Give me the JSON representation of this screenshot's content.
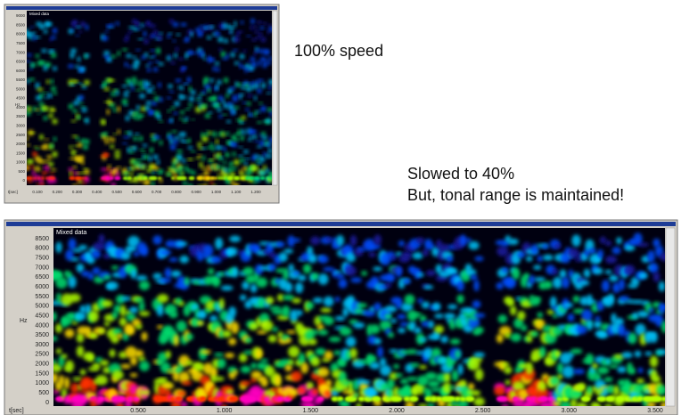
{
  "caption_top": "100% speed",
  "caption_bottom": [
    "Slowed to 40%",
    "But, tonal range is maintained!"
  ],
  "top_window": {
    "legend": "Mixed data",
    "unit": "Hz",
    "x_unit": "t[sec]",
    "yticks": [
      "9000",
      "8500",
      "8000",
      "7500",
      "7000",
      "6500",
      "6000",
      "5500",
      "5000",
      "4500",
      "4000",
      "3500",
      "3000",
      "2500",
      "2000",
      "1500",
      "1000",
      "500",
      "0"
    ],
    "xticks": [
      "0.100",
      "0.200",
      "0.300",
      "0.400",
      "0.500",
      "0.600",
      "0.700",
      "0.800",
      "0.900",
      "1.000",
      "1.100",
      "1.200"
    ]
  },
  "bottom_window": {
    "legend": "Mixed data",
    "unit": "Hz",
    "x_unit": "t[sec]",
    "yticks": [
      "8500",
      "8000",
      "7500",
      "7000",
      "6500",
      "6000",
      "5500",
      "5000",
      "4500",
      "4000",
      "3500",
      "3000",
      "2500",
      "2000",
      "1500",
      "1000",
      "500",
      "0"
    ],
    "xticks": [
      "0.500",
      "1.000",
      "1.500",
      "2.000",
      "2.500",
      "3.000",
      "3.500"
    ]
  }
}
